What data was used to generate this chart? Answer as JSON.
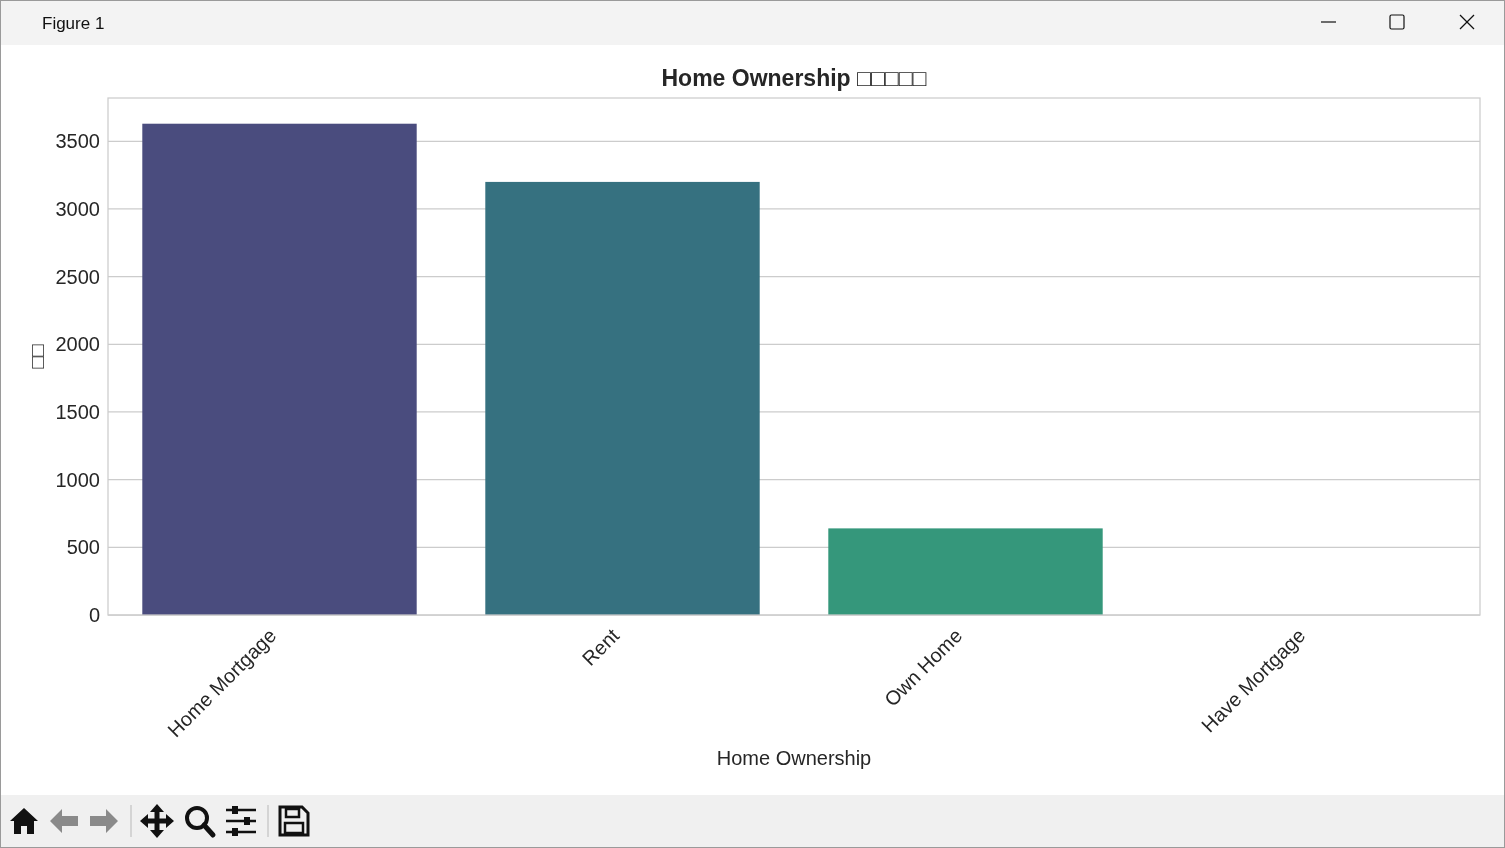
{
  "chart_data": {
    "type": "bar",
    "title": "Home Ownership □□□□□",
    "xlabel": "Home Ownership",
    "ylabel": "□□",
    "categories": [
      "Home Mortgage",
      "Rent",
      "Own Home",
      "Have Mortgage"
    ],
    "values": [
      3630,
      3200,
      640,
      0
    ],
    "colors": [
      "#4a4c7e",
      "#367180",
      "#35977b",
      "#7ec25d"
    ],
    "ylim": [
      0,
      3820
    ],
    "yticks": [
      0,
      500,
      1000,
      1500,
      2000,
      2500,
      3000,
      3500
    ],
    "grid": "y",
    "annotations": [
      "Figure 1"
    ]
  }
}
